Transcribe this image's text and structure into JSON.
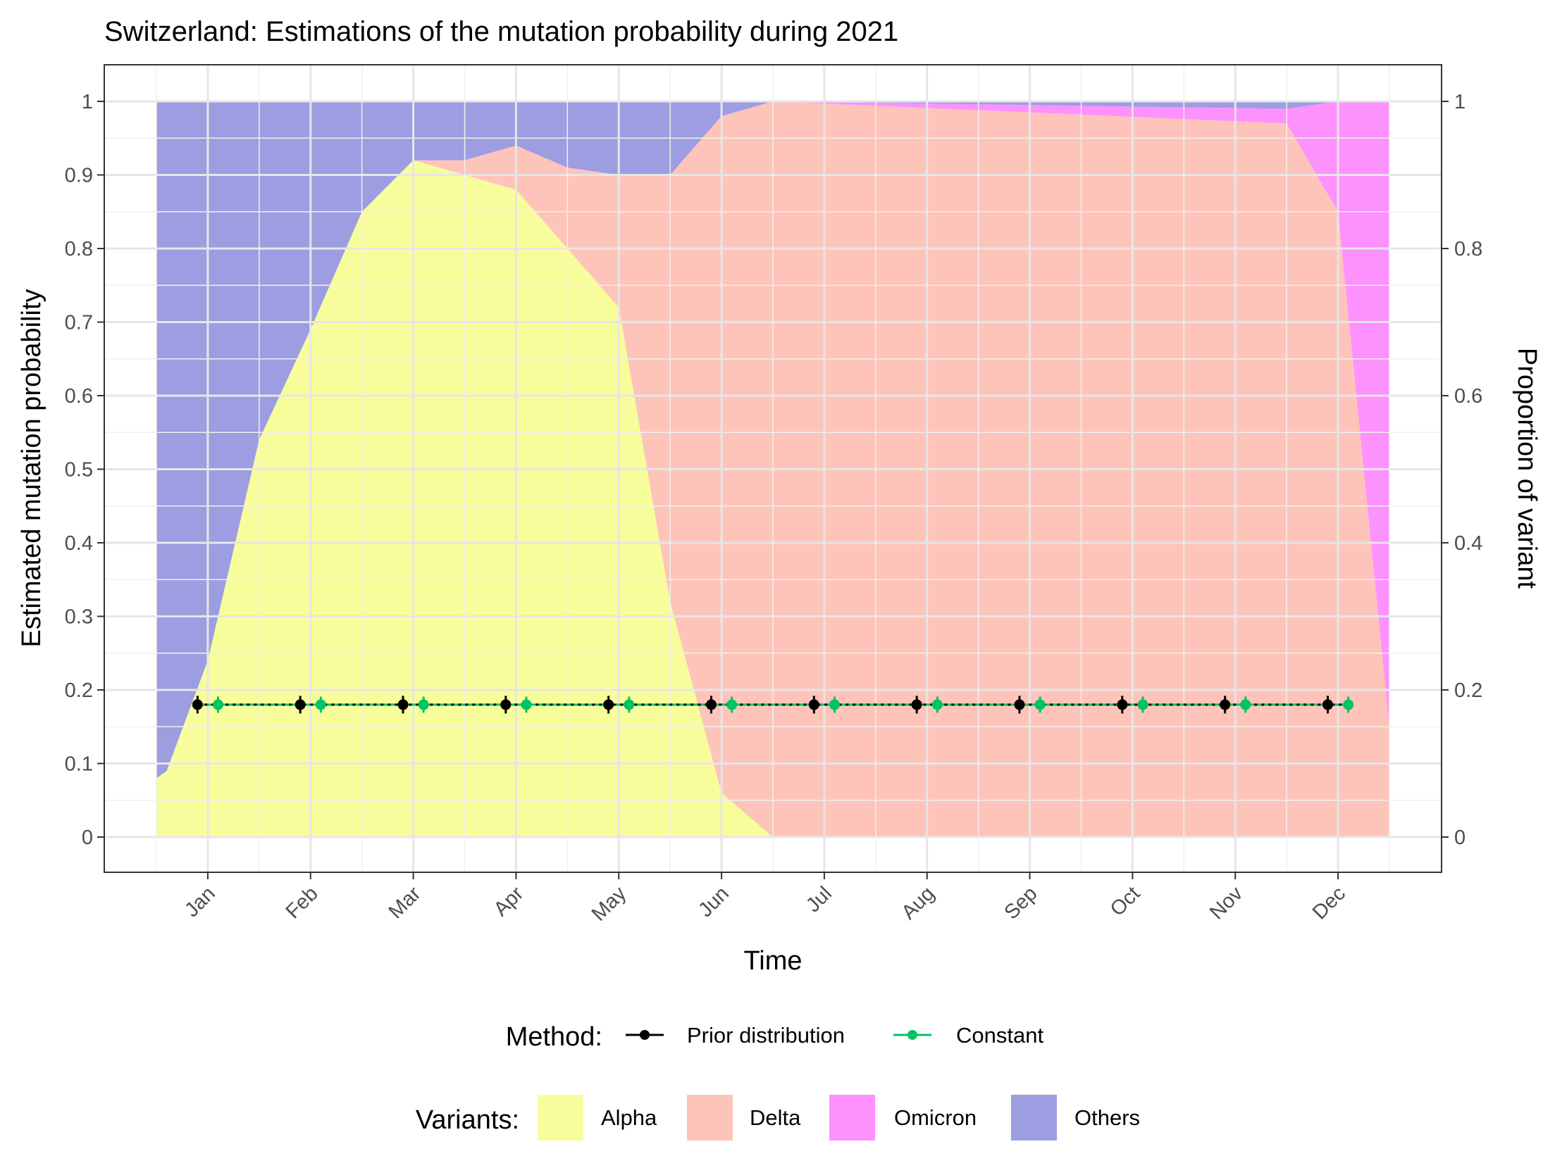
{
  "chart_data": {
    "type": "area",
    "title": "Switzerland: Estimations of the mutation probability during 2021",
    "xlabel": "Time",
    "ylabel_left": "Estimated mutation probability",
    "ylabel_right": "Proportion of variant",
    "x_range": [
      0,
      12
    ],
    "ylim": [
      -0.05,
      1.05
    ],
    "y_ticks": [
      "0",
      "0.1",
      "0.2",
      "0.3",
      "0.4",
      "0.5",
      "0.6",
      "0.7",
      "0.8",
      "0.9",
      "1"
    ],
    "y_right_ticks": [
      "0",
      "0.2",
      "0.4",
      "0.6",
      "0.8",
      "1"
    ],
    "x_ticks": [
      {
        "label": "Jan",
        "x": 0.5
      },
      {
        "label": "Feb",
        "x": 1.5
      },
      {
        "label": "Mar",
        "x": 2.5
      },
      {
        "label": "Apr",
        "x": 3.5
      },
      {
        "label": "May",
        "x": 4.5
      },
      {
        "label": "Jun",
        "x": 5.5
      },
      {
        "label": "Jul",
        "x": 6.5
      },
      {
        "label": "Aug",
        "x": 7.5
      },
      {
        "label": "Sep",
        "x": 8.5
      },
      {
        "label": "Oct",
        "x": 9.5
      },
      {
        "label": "Nov",
        "x": 10.5
      },
      {
        "label": "Dec",
        "x": 11.5
      }
    ],
    "grid": true,
    "variant_proportions": {
      "series": [
        {
          "name": "Alpha",
          "color": "#f8fd9b",
          "points": [
            [
              0,
              0.08
            ],
            [
              0.1,
              0.09
            ],
            [
              0.5,
              0.24
            ],
            [
              1,
              0.54
            ],
            [
              1.5,
              0.69
            ],
            [
              2,
              0.85
            ],
            [
              2.5,
              0.92
            ],
            [
              3,
              0.9
            ],
            [
              3.5,
              0.88
            ],
            [
              4,
              0.8
            ],
            [
              4.5,
              0.72
            ],
            [
              5,
              0.32
            ],
            [
              5.5,
              0.06
            ],
            [
              6,
              0.0
            ],
            [
              12,
              0.0
            ]
          ]
        },
        {
          "name": "Delta",
          "color": "#fec4ba",
          "points": [
            [
              0,
              0.0
            ],
            [
              0.1,
              0.0
            ],
            [
              0.5,
              0.0
            ],
            [
              1,
              0.0
            ],
            [
              1.5,
              0.0
            ],
            [
              2,
              0.0
            ],
            [
              2.5,
              0.0
            ],
            [
              3,
              0.02
            ],
            [
              3.5,
              0.06
            ],
            [
              4,
              0.11
            ],
            [
              4.5,
              0.18
            ],
            [
              5,
              0.58
            ],
            [
              5.5,
              0.92
            ],
            [
              6,
              1.0
            ],
            [
              11,
              0.97
            ],
            [
              11.5,
              0.85
            ],
            [
              12,
              0.15
            ]
          ]
        },
        {
          "name": "Omicron",
          "color": "#fd91fd",
          "points": [
            [
              0,
              0.0
            ],
            [
              6,
              0.0
            ],
            [
              11,
              0.02
            ],
            [
              11.5,
              0.15
            ],
            [
              12,
              0.85
            ]
          ]
        },
        {
          "name": "Others",
          "color": "#9d9de1",
          "points": [
            [
              0,
              0.92
            ],
            [
              0.1,
              0.91
            ],
            [
              0.5,
              0.76
            ],
            [
              1,
              0.46
            ],
            [
              1.5,
              0.31
            ],
            [
              2,
              0.15
            ],
            [
              2.5,
              0.08
            ],
            [
              3,
              0.08
            ],
            [
              3.5,
              0.06
            ],
            [
              4,
              0.09
            ],
            [
              4.5,
              0.1
            ],
            [
              5,
              0.1
            ],
            [
              5.5,
              0.02
            ],
            [
              6,
              0.0
            ],
            [
              11,
              0.01
            ],
            [
              11.5,
              0.0
            ],
            [
              12,
              0.0
            ]
          ]
        }
      ]
    },
    "methods": {
      "series": [
        {
          "name": "Prior distribution",
          "color": "#000000",
          "offset": -0.1,
          "x": [
            0.5,
            1.5,
            2.5,
            3.5,
            4.5,
            5.5,
            6.5,
            7.5,
            8.5,
            9.5,
            10.5,
            11.5
          ],
          "y": [
            0.18,
            0.18,
            0.18,
            0.18,
            0.18,
            0.18,
            0.18,
            0.18,
            0.18,
            0.18,
            0.18,
            0.18
          ],
          "err": [
            0.012,
            0.012,
            0.012,
            0.012,
            0.012,
            0.012,
            0.012,
            0.012,
            0.012,
            0.012,
            0.012,
            0.012
          ]
        },
        {
          "name": "Constant",
          "color": "#00c463",
          "offset": 0.1,
          "x": [
            0.5,
            1.5,
            2.5,
            3.5,
            4.5,
            5.5,
            6.5,
            7.5,
            8.5,
            9.5,
            10.5,
            11.5
          ],
          "y": [
            0.18,
            0.18,
            0.18,
            0.18,
            0.18,
            0.18,
            0.18,
            0.18,
            0.18,
            0.18,
            0.18,
            0.18
          ],
          "err": [
            0.011,
            0.011,
            0.011,
            0.011,
            0.011,
            0.011,
            0.011,
            0.011,
            0.011,
            0.011,
            0.011,
            0.011
          ]
        }
      ]
    },
    "legend": {
      "placement": "bottom",
      "method_title": "Method:",
      "variant_title": "Variants:"
    }
  }
}
